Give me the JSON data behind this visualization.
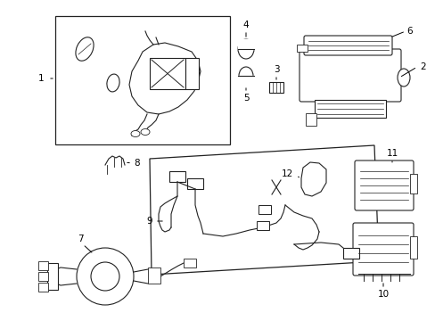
{
  "bg_color": "#ffffff",
  "line_color": "#222222",
  "fig_width": 4.89,
  "fig_height": 3.6,
  "dpi": 100,
  "font_size": 7.5
}
